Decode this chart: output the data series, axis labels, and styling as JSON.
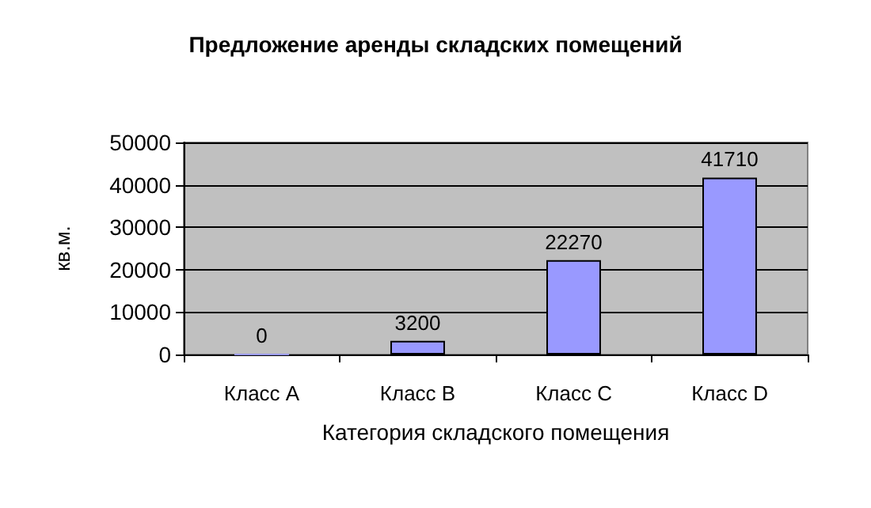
{
  "chart_data": {
    "type": "bar",
    "title": "Предложение аренды складских помещений",
    "xlabel": "Категория складского помещения",
    "ylabel": "кв.м.",
    "categories": [
      "Класс A",
      "Класс B",
      "Класс C",
      "Класс D"
    ],
    "values": [
      0,
      3200,
      22270,
      41710
    ],
    "color": "#9999ff",
    "ylim": [
      0,
      50000
    ],
    "yticks": [
      0,
      10000,
      20000,
      30000,
      40000,
      50000
    ],
    "grid": "y",
    "data_labels": true
  }
}
